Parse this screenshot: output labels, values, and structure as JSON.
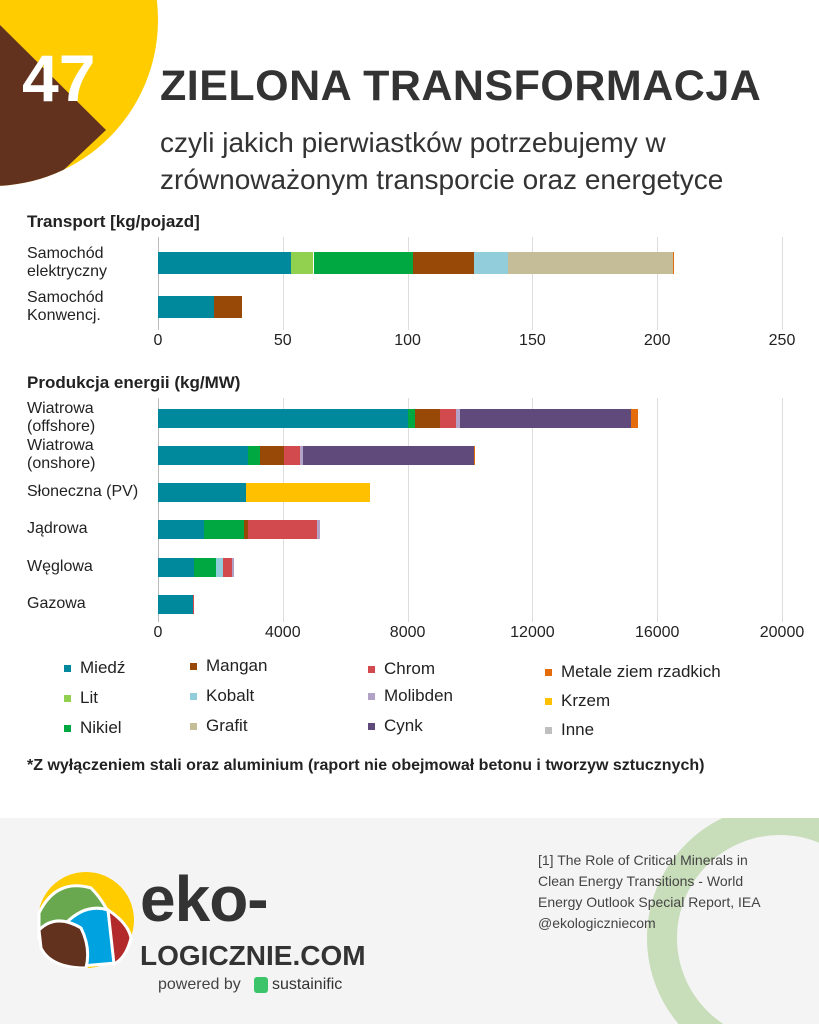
{
  "header": {
    "number": "47",
    "title": "ZIELONA TRANSFORMACJA",
    "subtitle": "czyli jakich pierwiastków potrzebujemy w zrównoważonym transporcie oraz energetyce"
  },
  "colors": {
    "Miedź": "#00889c",
    "Lit": "#92d050",
    "Nikiel": "#00a842",
    "Mangan": "#984807",
    "Kobalt": "#92cddc",
    "Grafit": "#c4bd97",
    "Chrom": "#d2494e",
    "Molibden": "#b3a2c7",
    "Cynk": "#604a7b",
    "Metale ziem rzadkich": "#e46c0a",
    "Krzem": "#ffc000",
    "Inne": "#bfbfbf"
  },
  "chart_data": [
    {
      "type": "bar",
      "orientation": "horizontal",
      "stacked": true,
      "title": "Transport [kg/pojazd]",
      "xlim": [
        0,
        250
      ],
      "ticks": [
        "0",
        "50",
        "100",
        "150",
        "200",
        "250"
      ],
      "grid": true,
      "categories": [
        "Samochód elektryczny",
        "Samochód Konwencj."
      ],
      "series": [
        {
          "name": "Miedź",
          "values": [
            53.4,
            22.4
          ]
        },
        {
          "name": "Lit",
          "values": [
            8.9,
            0
          ]
        },
        {
          "name": "Nikiel",
          "values": [
            39.9,
            0
          ]
        },
        {
          "name": "Mangan",
          "values": [
            24.4,
            11.3
          ]
        },
        {
          "name": "Kobalt",
          "values": [
            13.6,
            0
          ]
        },
        {
          "name": "Grafit",
          "values": [
            66.1,
            0
          ]
        },
        {
          "name": "Metale ziem rzadkich",
          "values": [
            0.5,
            0
          ]
        }
      ]
    },
    {
      "type": "bar",
      "orientation": "horizontal",
      "stacked": true,
      "title": "Produkcja energii (kg/MW)",
      "xlim": [
        0,
        20000
      ],
      "ticks": [
        "0",
        "4000",
        "8000",
        "12000",
        "16000",
        "20000"
      ],
      "grid": true,
      "categories": [
        "Wiatrowa (offshore)",
        "Wiatrowa (onshore)",
        "Słoneczna (PV)",
        "Jądrowa",
        "Węglowa",
        "Gazowa"
      ],
      "series": [
        {
          "name": "Miedź",
          "values": [
            8000,
            2890,
            2830,
            1470,
            1150,
            1120
          ]
        },
        {
          "name": "Nikiel",
          "values": [
            240,
            390,
            0,
            1300,
            720,
            0
          ]
        },
        {
          "name": "Mangan",
          "values": [
            790,
            770,
            0,
            130,
            0,
            0
          ]
        },
        {
          "name": "Kobalt",
          "values": [
            0,
            0,
            0,
            0,
            200,
            0
          ]
        },
        {
          "name": "Chrom",
          "values": [
            530,
            490,
            0,
            2190,
            310,
            40
          ]
        },
        {
          "name": "Molibden",
          "values": [
            120,
            100,
            0,
            90,
            60,
            0
          ]
        },
        {
          "name": "Cynk",
          "values": [
            5490,
            5490,
            0,
            0,
            0,
            0
          ]
        },
        {
          "name": "Metale ziem rzadkich",
          "values": [
            230,
            20,
            0,
            0,
            0,
            0
          ]
        },
        {
          "name": "Krzem",
          "values": [
            0,
            0,
            3960,
            0,
            0,
            0
          ]
        }
      ]
    }
  ],
  "charts_labels": [
    [
      "Samochód\nelektryczny",
      "Samochód\nKonwencj."
    ],
    [
      "Wiatrowa\n(offshore)",
      "Wiatrowa\n(onshore)",
      "Słoneczna (PV)",
      "Jądrowa",
      "Węglowa",
      "Gazowa"
    ]
  ],
  "legend": [
    [
      "Miedź",
      "Lit",
      "Nikiel"
    ],
    [
      "Mangan",
      "Kobalt",
      "Grafit"
    ],
    [
      "Chrom",
      "Molibden",
      "Cynk"
    ],
    [
      "Metale ziem rzadkich",
      "Krzem",
      "Inne"
    ]
  ],
  "note": "*Z wyłączeniem stali oraz aluminium (raport nie obejmował betonu i tworzyw sztucznych)",
  "footer": {
    "source": "[1] The Role of Critical Minerals in Clean Energy Transitions - World Energy Outlook Special Report, IEA",
    "handle": "@ekologiczniecom",
    "brand_top": "eko-",
    "brand_bottom": "LOGICZNIE.COM",
    "powered": "powered by",
    "partner": "sustainific"
  }
}
